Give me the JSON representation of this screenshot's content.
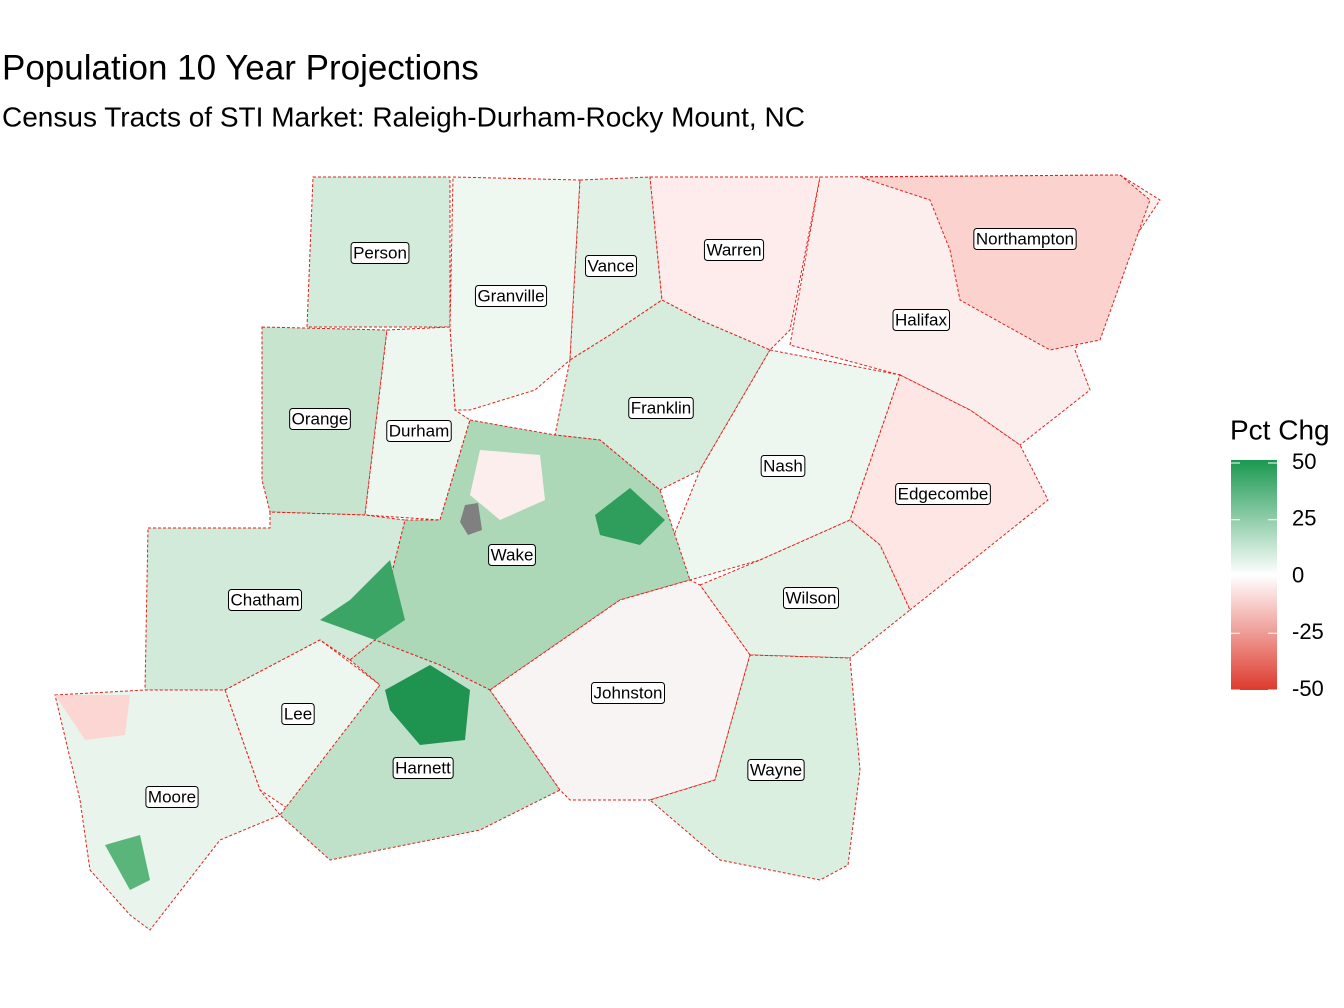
{
  "title": "Population 10 Year Projections",
  "subtitle": "Census Tracts of STI Market: Raleigh-Durham-Rocky Mount, NC",
  "legend": {
    "title": "Pct Chg",
    "ticks": [
      50,
      25,
      0,
      -25,
      -50
    ],
    "limits": [
      -50,
      50
    ],
    "low_color": "#de3a2e",
    "mid_color": "#ffffff",
    "high_color": "#1a9850"
  },
  "counties": [
    {
      "label": "Person"
    },
    {
      "label": "Granville"
    },
    {
      "label": "Vance"
    },
    {
      "label": "Warren"
    },
    {
      "label": "Northampton"
    },
    {
      "label": "Halifax"
    },
    {
      "label": "Orange"
    },
    {
      "label": "Durham"
    },
    {
      "label": "Franklin"
    },
    {
      "label": "Nash"
    },
    {
      "label": "Edgecombe"
    },
    {
      "label": "Wake"
    },
    {
      "label": "Wilson"
    },
    {
      "label": "Chatham"
    },
    {
      "label": "Lee"
    },
    {
      "label": "Johnston"
    },
    {
      "label": "Harnett"
    },
    {
      "label": "Wayne"
    },
    {
      "label": "Moore"
    }
  ]
}
